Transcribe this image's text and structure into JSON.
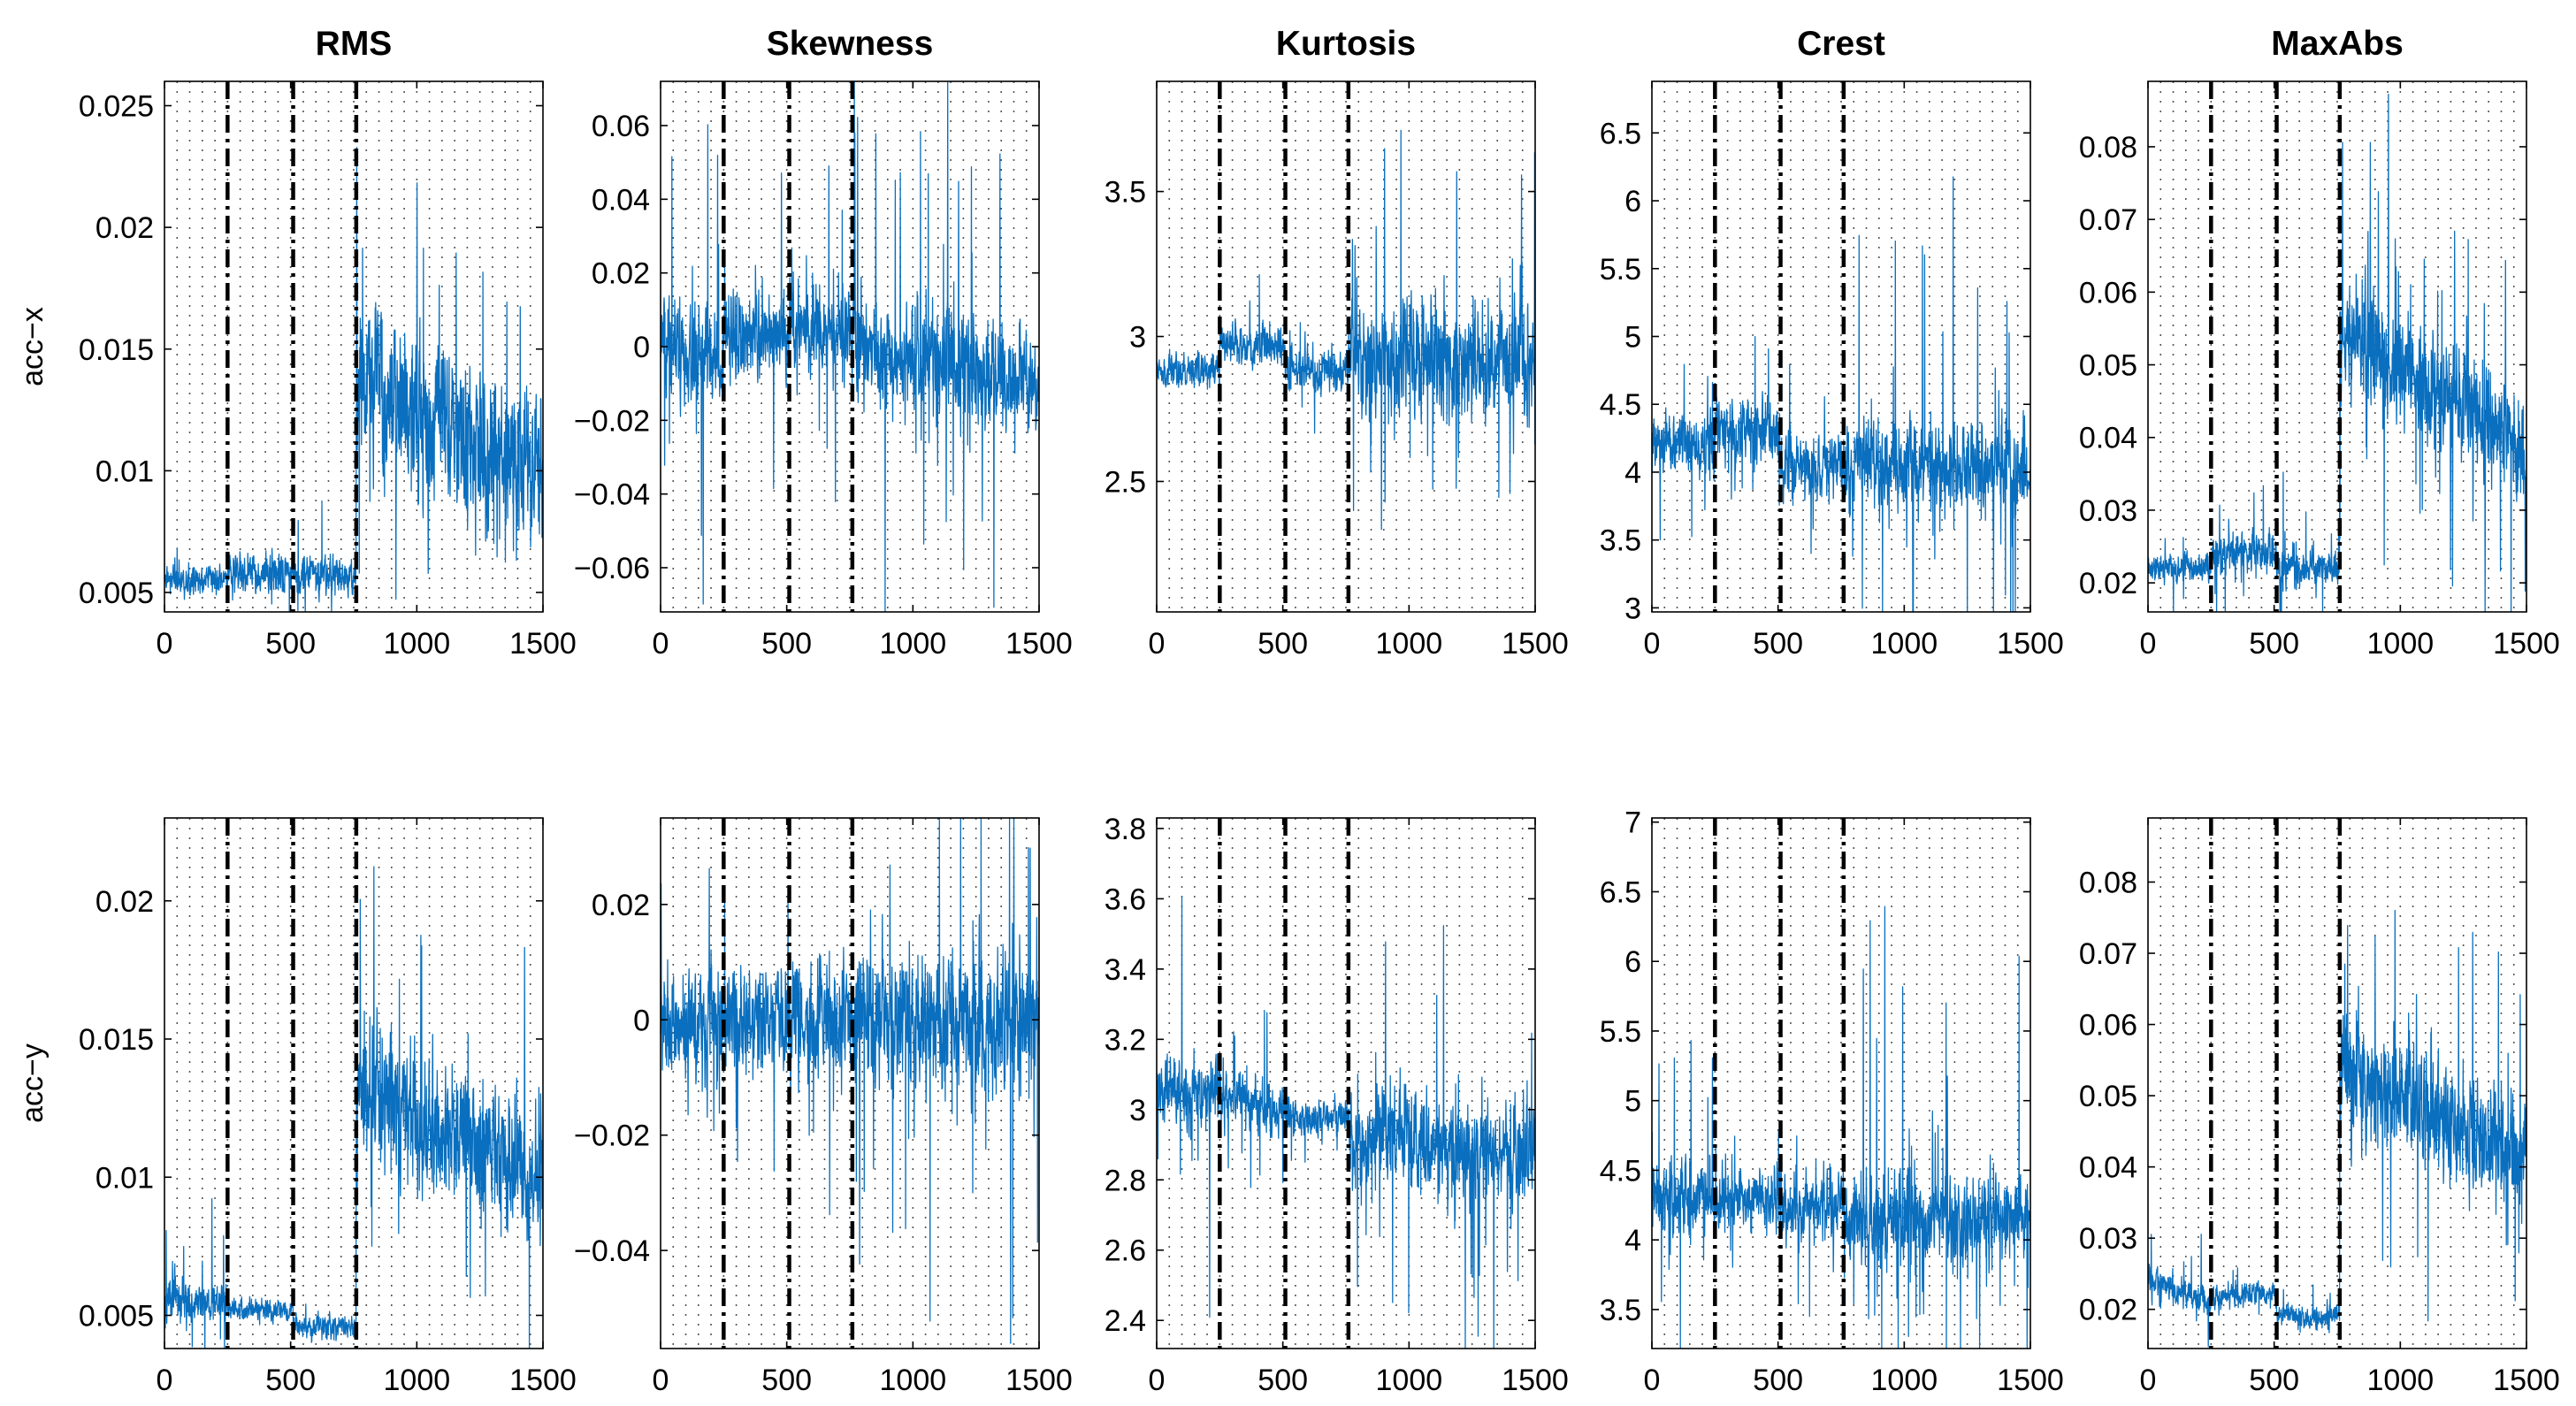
{
  "chart_data": {
    "type": "line",
    "layout": "2x5 grid of line plots",
    "column_titles": [
      "RMS",
      "Skewness",
      "Kurtosis",
      "Crest",
      "MaxAbs"
    ],
    "row_labels": [
      "acc−x",
      "acc−y"
    ],
    "x_range": [
      0,
      1500
    ],
    "x_ticks": [
      0,
      500,
      1000,
      1500
    ],
    "x_tick_labels": [
      "0",
      "500",
      "1000",
      "1500"
    ],
    "phase_boundaries": [
      250,
      510,
      760
    ],
    "minor_vertical_grid_step": 50,
    "series_color": "#0a6fbe",
    "boundary_color": "#000000",
    "panels": [
      {
        "id": "acc-x-rms",
        "row": 0,
        "col": 0,
        "ylim": [
          0.0042,
          0.026
        ],
        "yticks": [
          0.005,
          0.01,
          0.015,
          0.02,
          0.025
        ],
        "ytick_labels": [
          "0.005",
          "0.01",
          "0.015",
          "0.02",
          "0.025"
        ],
        "segments": [
          {
            "from": 0,
            "to": 250,
            "level": 0.0055,
            "noise": 0.0004,
            "spike": 0.0013,
            "trend": 0
          },
          {
            "from": 250,
            "to": 510,
            "level": 0.0058,
            "noise": 0.0006,
            "spike": 0.0018,
            "trend": 0
          },
          {
            "from": 510,
            "to": 760,
            "level": 0.0057,
            "noise": 0.0006,
            "spike": 0.0035,
            "trend": 0
          },
          {
            "from": 760,
            "to": 1500,
            "level": 0.014,
            "noise": 0.0025,
            "spike": 0.0095,
            "trend": -0.0045
          }
        ]
      },
      {
        "id": "acc-x-skewness",
        "row": 0,
        "col": 1,
        "ylim": [
          -0.072,
          0.072
        ],
        "yticks": [
          -0.06,
          -0.04,
          -0.02,
          0,
          0.02,
          0.04,
          0.06
        ],
        "ytick_labels": [
          "−0.06",
          "−0.04",
          "−0.02",
          "0",
          "0.02",
          "0.04",
          "0.06"
        ],
        "segments": [
          {
            "from": 0,
            "to": 250,
            "level": 0.0,
            "noise": 0.01,
            "spike": 0.07,
            "trend": -0.006
          },
          {
            "from": 250,
            "to": 510,
            "level": 0.003,
            "noise": 0.008,
            "spike": 0.045,
            "trend": 0
          },
          {
            "from": 510,
            "to": 760,
            "level": 0.005,
            "noise": 0.008,
            "spike": 0.05,
            "trend": 0
          },
          {
            "from": 760,
            "to": 1500,
            "level": 0.0,
            "noise": 0.01,
            "spike": 0.07,
            "trend": -0.01
          }
        ]
      },
      {
        "id": "acc-x-kurtosis",
        "row": 0,
        "col": 2,
        "ylim": [
          2.05,
          3.88
        ],
        "yticks": [
          2.5,
          3,
          3.5
        ],
        "ytick_labels": [
          "2.5",
          "3",
          "3.5"
        ],
        "segments": [
          {
            "from": 0,
            "to": 250,
            "level": 2.88,
            "noise": 0.04,
            "spike": 0.12,
            "trend": 0
          },
          {
            "from": 250,
            "to": 510,
            "level": 2.97,
            "noise": 0.05,
            "spike": 0.2,
            "trend": 0
          },
          {
            "from": 510,
            "to": 760,
            "level": 2.88,
            "noise": 0.05,
            "spike": 0.2,
            "trend": 0
          },
          {
            "from": 760,
            "to": 1500,
            "level": 2.92,
            "noise": 0.15,
            "spike": 0.9,
            "trend": 0
          }
        ]
      },
      {
        "id": "acc-x-crest",
        "row": 0,
        "col": 3,
        "ylim": [
          2.97,
          6.88
        ],
        "yticks": [
          3,
          3.5,
          4,
          4.5,
          5,
          5.5,
          6,
          6.5
        ],
        "ytick_labels": [
          "3",
          "3.5",
          "4",
          "4.5",
          "5",
          "5.5",
          "6",
          "6.5"
        ],
        "segments": [
          {
            "from": 0,
            "to": 250,
            "level": 4.2,
            "noise": 0.17,
            "spike": 0.7,
            "trend": 0
          },
          {
            "from": 250,
            "to": 510,
            "level": 4.3,
            "noise": 0.17,
            "spike": 0.6,
            "trend": 0
          },
          {
            "from": 510,
            "to": 760,
            "level": 4.05,
            "noise": 0.18,
            "spike": 0.6,
            "trend": 0
          },
          {
            "from": 760,
            "to": 1500,
            "level": 4.05,
            "noise": 0.22,
            "spike": 1.9,
            "trend": 0
          }
        ]
      },
      {
        "id": "acc-x-maxabs",
        "row": 0,
        "col": 4,
        "ylim": [
          0.016,
          0.089
        ],
        "yticks": [
          0.02,
          0.03,
          0.04,
          0.05,
          0.06,
          0.07,
          0.08
        ],
        "ytick_labels": [
          "0.02",
          "0.03",
          "0.04",
          "0.05",
          "0.06",
          "0.07",
          "0.08"
        ],
        "segments": [
          {
            "from": 0,
            "to": 250,
            "level": 0.022,
            "noise": 0.0015,
            "spike": 0.006,
            "trend": 0
          },
          {
            "from": 250,
            "to": 510,
            "level": 0.024,
            "noise": 0.002,
            "spike": 0.01,
            "trend": 0
          },
          {
            "from": 510,
            "to": 760,
            "level": 0.022,
            "noise": 0.0018,
            "spike": 0.013,
            "trend": 0
          },
          {
            "from": 760,
            "to": 1500,
            "level": 0.055,
            "noise": 0.006,
            "spike": 0.03,
            "trend": -0.017
          }
        ]
      },
      {
        "id": "acc-y-rms",
        "row": 1,
        "col": 0,
        "ylim": [
          0.0038,
          0.023
        ],
        "yticks": [
          0.005,
          0.01,
          0.015,
          0.02
        ],
        "ytick_labels": [
          "0.005",
          "0.01",
          "0.015",
          "0.02"
        ],
        "segments": [
          {
            "from": 0,
            "to": 250,
            "level": 0.0055,
            "noise": 0.0005,
            "spike": 0.0035,
            "trend": 0
          },
          {
            "from": 250,
            "to": 510,
            "level": 0.0052,
            "noise": 0.0003,
            "spike": 0.0008,
            "trend": 0
          },
          {
            "from": 510,
            "to": 760,
            "level": 0.0046,
            "noise": 0.0003,
            "spike": 0.0008,
            "trend": 0
          },
          {
            "from": 760,
            "to": 1500,
            "level": 0.0135,
            "noise": 0.0018,
            "spike": 0.0085,
            "trend": -0.0035
          }
        ]
      },
      {
        "id": "acc-y-skewness",
        "row": 1,
        "col": 1,
        "ylim": [
          -0.057,
          0.035
        ],
        "yticks": [
          -0.04,
          -0.02,
          0,
          0.02
        ],
        "ytick_labels": [
          "−0.04",
          "−0.02",
          "0",
          "0.02"
        ],
        "segments": [
          {
            "from": 0,
            "to": 250,
            "level": 0.0,
            "noise": 0.007,
            "spike": 0.025,
            "trend": 0
          },
          {
            "from": 250,
            "to": 510,
            "level": 0.0,
            "noise": 0.007,
            "spike": 0.03,
            "trend": 0
          },
          {
            "from": 510,
            "to": 760,
            "level": 0.0,
            "noise": 0.007,
            "spike": 0.03,
            "trend": 0
          },
          {
            "from": 760,
            "to": 1500,
            "level": 0.0,
            "noise": 0.009,
            "spike": 0.05,
            "trend": 0
          }
        ]
      },
      {
        "id": "acc-y-kurtosis",
        "row": 1,
        "col": 2,
        "ylim": [
          2.32,
          3.83
        ],
        "yticks": [
          2.4,
          2.6,
          2.8,
          3,
          3.2,
          3.4,
          3.6,
          3.8
        ],
        "ytick_labels": [
          "2.4",
          "2.6",
          "2.8",
          "3",
          "3.2",
          "3.4",
          "3.6",
          "3.8"
        ],
        "segments": [
          {
            "from": 0,
            "to": 250,
            "level": 3.05,
            "noise": 0.07,
            "spike": 0.6,
            "trend": 0
          },
          {
            "from": 250,
            "to": 510,
            "level": 3.05,
            "noise": 0.05,
            "spike": 0.3,
            "trend": -0.06
          },
          {
            "from": 510,
            "to": 760,
            "level": 2.98,
            "noise": 0.04,
            "spike": 0.12,
            "trend": 0
          },
          {
            "from": 760,
            "to": 1500,
            "level": 2.92,
            "noise": 0.1,
            "spike": 0.7,
            "trend": -0.05
          }
        ]
      },
      {
        "id": "acc-y-crest",
        "row": 1,
        "col": 3,
        "ylim": [
          3.22,
          7.03
        ],
        "yticks": [
          3.5,
          4,
          4.5,
          5,
          5.5,
          6,
          6.5,
          7
        ],
        "ytick_labels": [
          "3.5",
          "4",
          "4.5",
          "5",
          "5.5",
          "6",
          "6.5",
          "7"
        ],
        "segments": [
          {
            "from": 0,
            "to": 250,
            "level": 4.3,
            "noise": 0.2,
            "spike": 1.2,
            "trend": 0
          },
          {
            "from": 250,
            "to": 510,
            "level": 4.3,
            "noise": 0.17,
            "spike": 0.7,
            "trend": 0
          },
          {
            "from": 510,
            "to": 760,
            "level": 4.25,
            "noise": 0.17,
            "spike": 0.7,
            "trend": 0
          },
          {
            "from": 760,
            "to": 1500,
            "level": 4.15,
            "noise": 0.22,
            "spike": 2.8,
            "trend": 0
          }
        ]
      },
      {
        "id": "acc-y-maxabs",
        "row": 1,
        "col": 4,
        "ylim": [
          0.0145,
          0.089
        ],
        "yticks": [
          0.02,
          0.03,
          0.04,
          0.05,
          0.06,
          0.07,
          0.08
        ],
        "ytick_labels": [
          "0.02",
          "0.03",
          "0.04",
          "0.05",
          "0.06",
          "0.07",
          "0.08"
        ],
        "segments": [
          {
            "from": 0,
            "to": 250,
            "level": 0.024,
            "noise": 0.0015,
            "spike": 0.008,
            "trend": -0.003
          },
          {
            "from": 250,
            "to": 510,
            "level": 0.022,
            "noise": 0.0012,
            "spike": 0.004,
            "trend": 0
          },
          {
            "from": 510,
            "to": 760,
            "level": 0.019,
            "noise": 0.0012,
            "spike": 0.004,
            "trend": 0
          },
          {
            "from": 760,
            "to": 1500,
            "level": 0.054,
            "noise": 0.006,
            "spike": 0.03,
            "trend": -0.013
          }
        ]
      }
    ]
  }
}
